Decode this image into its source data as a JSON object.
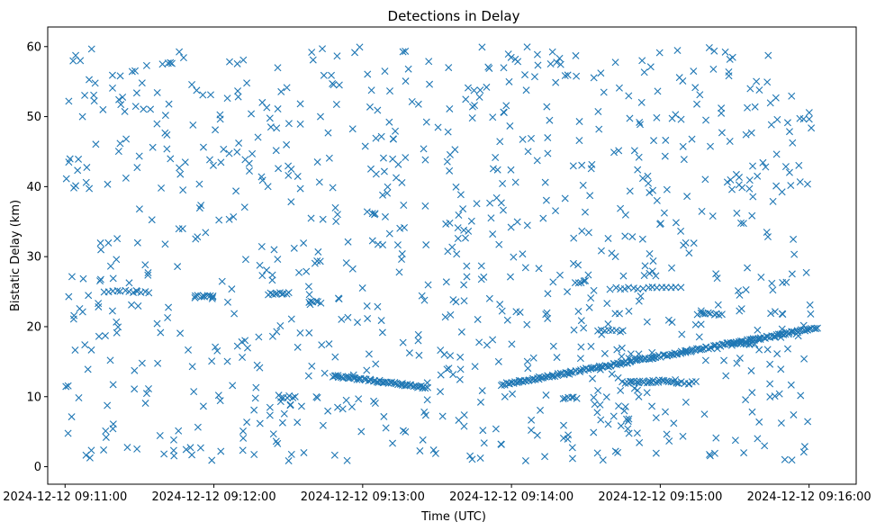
{
  "chart_data": {
    "type": "scatter",
    "title": "Detections in Delay",
    "xlabel": "Time (UTC)",
    "ylabel": "Bistatic Delay (km)",
    "xlim": [
      "2024-12-12 09:10:53",
      "2024-12-12 09:16:19"
    ],
    "ylim": [
      -2.5,
      62.8
    ],
    "grid": false,
    "marker": "x",
    "marker_color": "#1f77b4",
    "xticks": [
      "2024-12-12 09:11:00",
      "2024-12-12 09:12:00",
      "2024-12-12 09:13:00",
      "2024-12-12 09:14:00",
      "2024-12-12 09:15:00",
      "2024-12-12 09:16:00"
    ],
    "yticks": [
      0,
      10,
      20,
      30,
      40,
      50,
      60
    ],
    "seed": 12345,
    "background_count": 920,
    "time_range": [
      "2024-12-12 09:11:00",
      "2024-12-12 09:16:01"
    ],
    "delay_range": [
      0.8,
      60
    ],
    "tracks": [
      {
        "t_start": "2024-12-12 09:12:48",
        "t_end": "2024-12-12 09:13:26",
        "d_start": 13.0,
        "d_end": 11.3,
        "count": 60
      },
      {
        "t_start": "2024-12-12 09:13:56",
        "t_end": "2024-12-12 09:16:03",
        "d_start": 11.7,
        "d_end": 19.8,
        "count": 190
      },
      {
        "t_start": "2024-12-12 09:14:45",
        "t_end": "2024-12-12 09:15:06",
        "d_start": 12.0,
        "d_end": 12.3,
        "count": 25
      },
      {
        "t_start": "2024-12-12 09:11:16",
        "t_end": "2024-12-12 09:11:34",
        "d_start": 25.0,
        "d_end": 25.0,
        "count": 12
      },
      {
        "t_start": "2024-12-12 09:11:52",
        "t_end": "2024-12-12 09:12:00",
        "d_start": 24.3,
        "d_end": 24.3,
        "count": 10
      },
      {
        "t_start": "2024-12-12 09:12:22",
        "t_end": "2024-12-12 09:12:30",
        "d_start": 24.7,
        "d_end": 24.7,
        "count": 10
      },
      {
        "t_start": "2024-12-12 09:12:38",
        "t_end": "2024-12-12 09:12:43",
        "d_start": 23.5,
        "d_end": 23.5,
        "count": 6
      },
      {
        "t_start": "2024-12-12 09:14:40",
        "t_end": "2024-12-12 09:15:08",
        "d_start": 25.5,
        "d_end": 25.5,
        "count": 16
      },
      {
        "t_start": "2024-12-12 09:15:15",
        "t_end": "2024-12-12 09:15:25",
        "d_start": 21.8,
        "d_end": 21.8,
        "count": 10
      },
      {
        "t_start": "2024-12-12 09:15:30",
        "t_end": "2024-12-12 09:15:38",
        "d_start": 17.6,
        "d_end": 17.6,
        "count": 8
      },
      {
        "t_start": "2024-12-12 09:14:26",
        "t_end": "2024-12-12 09:14:30",
        "d_start": 26.4,
        "d_end": 26.4,
        "count": 5
      },
      {
        "t_start": "2024-12-12 09:15:05",
        "t_end": "2024-12-12 09:15:14",
        "d_start": 12.0,
        "d_end": 12.0,
        "count": 8
      },
      {
        "t_start": "2024-12-12 09:12:27",
        "t_end": "2024-12-12 09:12:33",
        "d_start": 10.0,
        "d_end": 10.0,
        "count": 6
      },
      {
        "t_start": "2024-12-12 09:14:21",
        "t_end": "2024-12-12 09:14:26",
        "d_start": 9.8,
        "d_end": 9.8,
        "count": 6
      },
      {
        "t_start": "2024-12-12 09:14:35",
        "t_end": "2024-12-12 09:14:45",
        "d_start": 19.4,
        "d_end": 19.4,
        "count": 8
      }
    ]
  }
}
